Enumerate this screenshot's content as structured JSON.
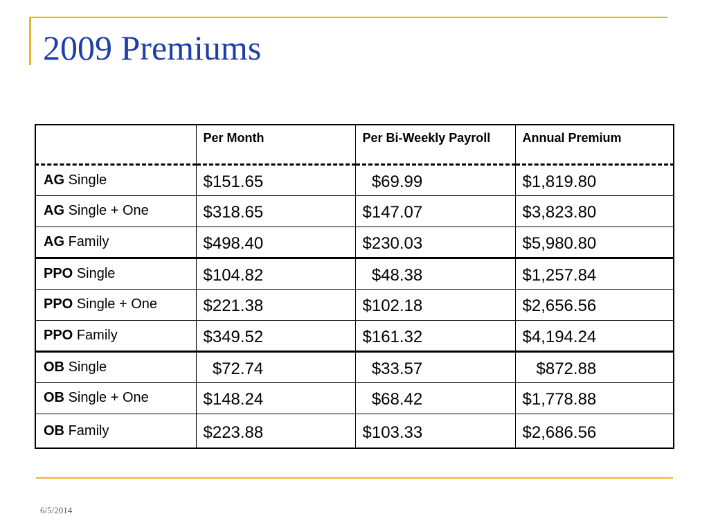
{
  "slide": {
    "title": "2009 Premiums",
    "date": "6/5/2014"
  },
  "colors": {
    "accent": "#e6b62f",
    "title": "#1f3fa8"
  },
  "table": {
    "headers": [
      "",
      "Per Month",
      "Per Bi-Weekly Payroll",
      "Annual Premium"
    ],
    "rows": [
      {
        "plan": "AG",
        "coverage": "Single",
        "per_month": "$151.65",
        "per_biweekly": "  $69.99",
        "annual": "$1,819.80"
      },
      {
        "plan": "AG",
        "coverage": "Single + One",
        "per_month": "$318.65",
        "per_biweekly": "$147.07",
        "annual": "$3,823.80"
      },
      {
        "plan": "AG",
        "coverage": "Family",
        "per_month": "$498.40",
        "per_biweekly": "$230.03",
        "annual": "$5,980.80"
      },
      {
        "plan": "PPO",
        "coverage": "Single",
        "per_month": "$104.82",
        "per_biweekly": "  $48.38",
        "annual": "$1,257.84"
      },
      {
        "plan": "PPO",
        "coverage": "Single + One",
        "per_month": "$221.38",
        "per_biweekly": "$102.18",
        "annual": "$2,656.56"
      },
      {
        "plan": "PPO",
        "coverage": "Family",
        "per_month": "$349.52",
        "per_biweekly": "$161.32",
        "annual": "$4,194.24"
      },
      {
        "plan": "OB",
        "coverage": "Single",
        "per_month": "  $72.74",
        "per_biweekly": "  $33.57",
        "annual": "   $872.88"
      },
      {
        "plan": "OB",
        "coverage": "Single + One",
        "per_month": "$148.24",
        "per_biweekly": "  $68.42",
        "annual": "$1,778.88"
      },
      {
        "plan": "OB",
        "coverage": "Family",
        "per_month": "$223.88",
        "per_biweekly": "$103.33",
        "annual": "$2,686.56"
      }
    ]
  }
}
